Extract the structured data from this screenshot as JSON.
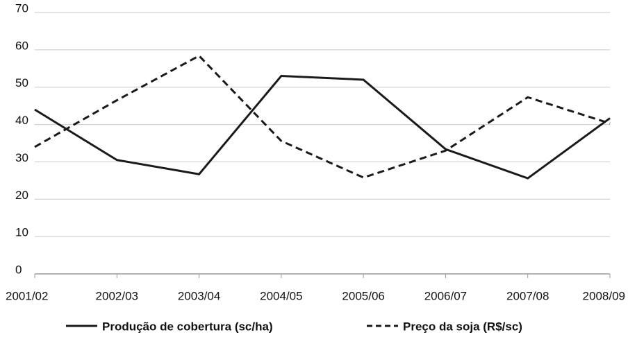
{
  "chart_data": {
    "type": "line",
    "categories": [
      "2001/02",
      "2002/03",
      "2003/04",
      "2004/05",
      "2005/06",
      "2006/07",
      "2007/08",
      "2008/09"
    ],
    "series": [
      {
        "name": "Produção de cobertura (sc/ha)",
        "color": "#1a1a1a",
        "style": "solid",
        "values": [
          44,
          30.5,
          26.7,
          53,
          52,
          33.4,
          25.6,
          41.7
        ]
      },
      {
        "name": "Preço da soja (R$/sc)",
        "color": "#1a1a1a",
        "style": "dashed",
        "values": [
          34,
          46.5,
          58.4,
          35.6,
          25.8,
          33,
          47.3,
          40.3
        ]
      }
    ],
    "ylim": [
      0,
      70
    ],
    "yticks": [
      0,
      10,
      20,
      30,
      40,
      50,
      60,
      70
    ],
    "grid": true,
    "legend": "bottom"
  }
}
